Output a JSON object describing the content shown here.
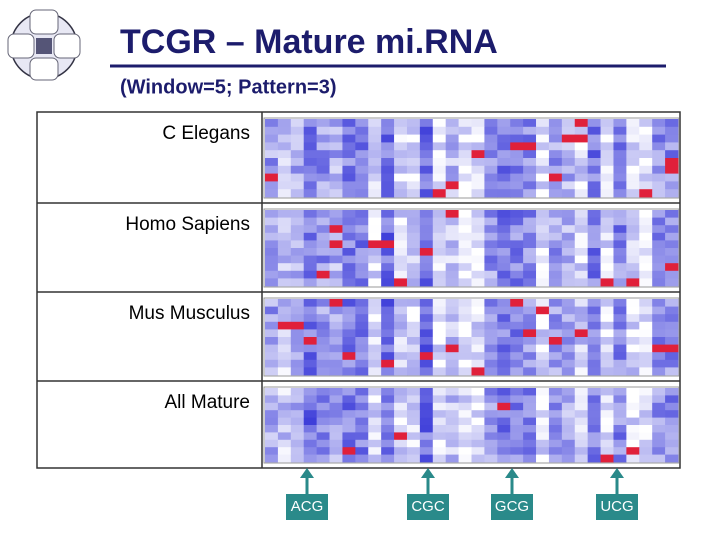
{
  "header": {
    "title": "TCGR – Mature mi.RNA",
    "subtitle": "(Window=5; Pattern=3)"
  },
  "rows": [
    {
      "label": "C Elegans"
    },
    {
      "label": "Homo Sapiens"
    },
    {
      "label": "Mus Musculus"
    },
    {
      "label": "All Mature"
    }
  ],
  "markers": [
    {
      "label": "ACG"
    },
    {
      "label": "CGC"
    },
    {
      "label": "GCG"
    },
    {
      "label": "UCG"
    }
  ]
}
